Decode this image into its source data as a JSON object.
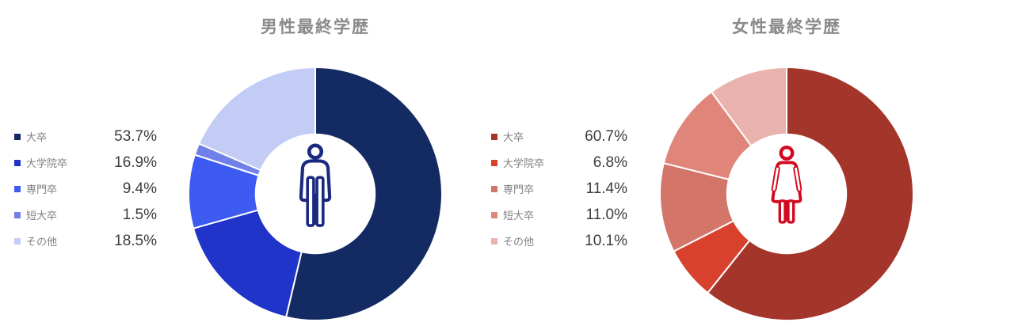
{
  "styles": {
    "background": "#ffffff",
    "title_color": "#8a8a8a",
    "legend_label_color": "#808080",
    "legend_value_color": "#3d3d3d",
    "slice_border_color": "#ffffff"
  },
  "chart_data": [
    {
      "type": "pie",
      "subtype": "donut",
      "title": "男性最終学歴",
      "categories": [
        "大卒",
        "大学院卒",
        "専門卒",
        "短大卒",
        "その他"
      ],
      "values": [
        53.7,
        16.9,
        9.4,
        1.5,
        18.5
      ],
      "value_labels": [
        "53.7%",
        "16.9%",
        "9.4%",
        "1.5%",
        "18.5%"
      ],
      "colors": [
        "#132a63",
        "#2134ca",
        "#3d5af1",
        "#7080e8",
        "#c3ccf5"
      ],
      "center_icon": "male-pictogram",
      "icon_color": "#1a2a80",
      "legend_position": "left",
      "start_angle_deg": 0,
      "direction": "clockwise",
      "donut_hole_ratio": 0.47
    },
    {
      "type": "pie",
      "subtype": "donut",
      "title": "女性最終学歴",
      "categories": [
        "大卒",
        "大学院卒",
        "専門卒",
        "短大卒",
        "その他"
      ],
      "values": [
        60.7,
        6.8,
        11.4,
        11.0,
        10.1
      ],
      "value_labels": [
        "60.7%",
        "6.8%",
        "11.4%",
        "11.0%",
        "10.1%"
      ],
      "colors": [
        "#a4352a",
        "#d8412e",
        "#d4756a",
        "#e0857a",
        "#eab2ac"
      ],
      "center_icon": "female-pictogram",
      "icon_color": "#d20a20",
      "legend_position": "left",
      "start_angle_deg": 0,
      "direction": "clockwise",
      "donut_hole_ratio": 0.47
    }
  ]
}
